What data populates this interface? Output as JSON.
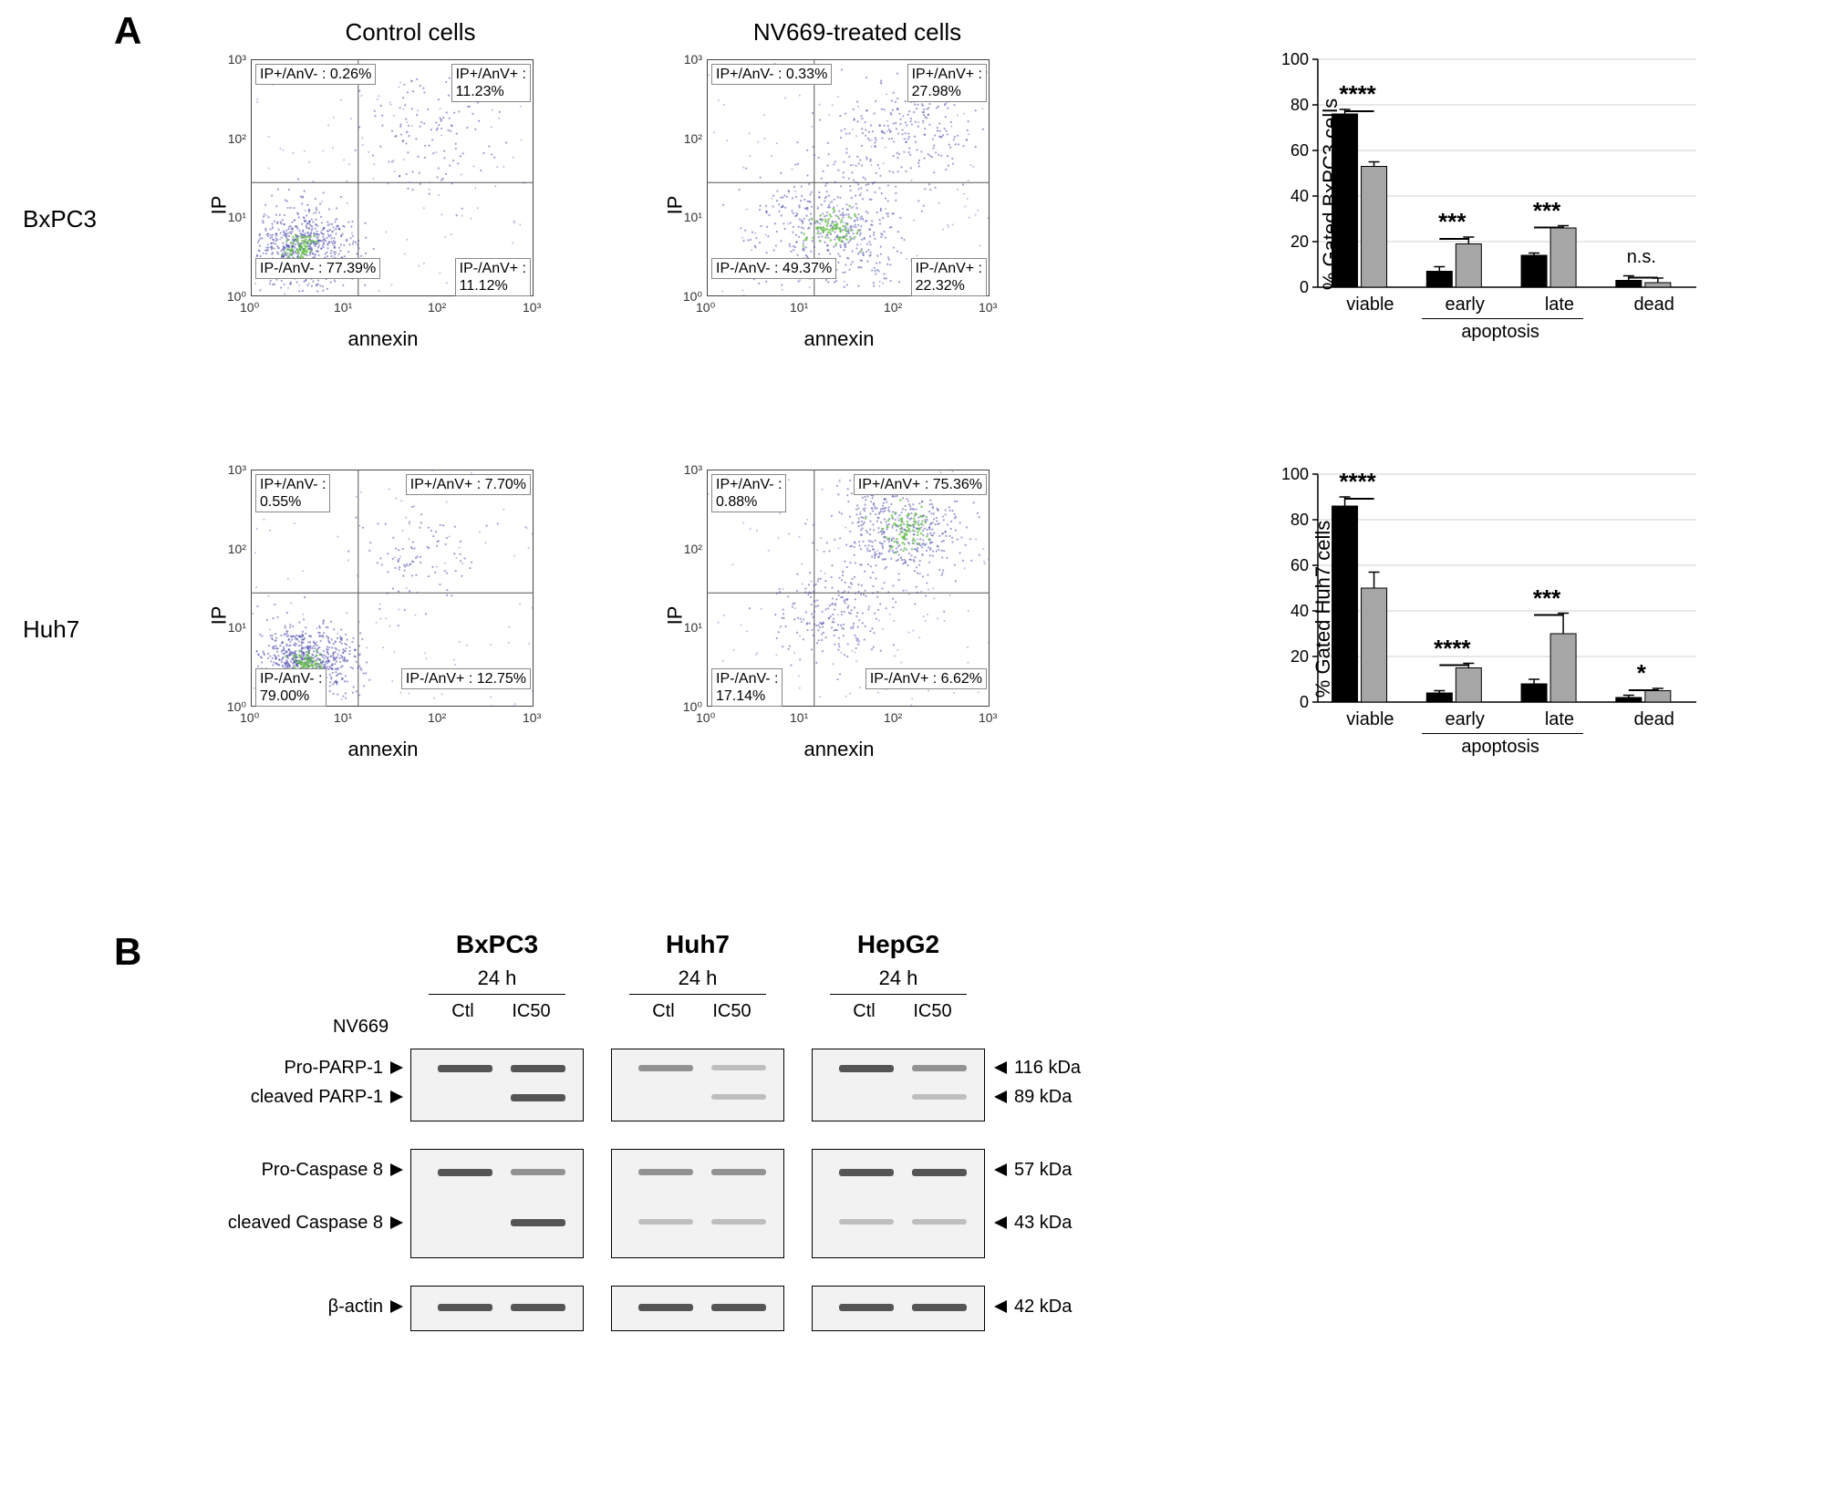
{
  "panelA": {
    "letter": "A",
    "col_headers": [
      "Control cells",
      "NV669-treated cells"
    ],
    "rows": [
      {
        "label": "BxPC3",
        "scatter": [
          {
            "y_label": "IP",
            "x_label": "annexin",
            "quadrants": {
              "ul": "IP+/AnV- : 0.26%",
              "ur": "IP+/AnV+ :\n11.23%",
              "ll": "IP-/AnV- : 77.39%",
              "lr": "IP-/AnV+ :\n11.12%"
            },
            "density_center": [
              0.18,
              0.8
            ],
            "density_spread": 0.09,
            "secondary_center": [
              0.62,
              0.32
            ],
            "secondary_spread": 0.12,
            "secondary_n": 120,
            "main_n": 700,
            "quad_lines": {
              "x": 0.38,
              "y": 0.52
            }
          },
          {
            "y_label": "IP",
            "x_label": "annexin",
            "quadrants": {
              "ul": "IP+/AnV- : 0.33%",
              "ur": "IP+/AnV+ :\n27.98%",
              "ll": "IP-/AnV- : 49.37%",
              "lr": "IP-/AnV+ :\n22.32%"
            },
            "density_center": [
              0.45,
              0.72
            ],
            "density_spread": 0.13,
            "secondary_center": [
              0.68,
              0.3
            ],
            "secondary_spread": 0.13,
            "secondary_n": 250,
            "main_n": 450,
            "quad_lines": {
              "x": 0.38,
              "y": 0.52
            }
          }
        ],
        "bar": {
          "y_label": "% Gated BxPC3 cells",
          "ymax": 100,
          "ytick_step": 20,
          "categories": [
            "viable",
            "early",
            "late",
            "dead"
          ],
          "apoptosis_span": [
            1,
            2
          ],
          "control": [
            76,
            7,
            14,
            3
          ],
          "control_err": [
            2,
            2,
            1,
            2
          ],
          "treated": [
            53,
            19,
            26,
            2
          ],
          "treated_err": [
            2,
            3,
            1,
            2
          ],
          "sig": [
            "****",
            "***",
            "***",
            "n.s."
          ],
          "colors": {
            "control": "#000000",
            "treated": "#a6a6a6",
            "grid": "#d0d0d0",
            "axis": "#000000"
          }
        }
      },
      {
        "label": "Huh7",
        "scatter": [
          {
            "y_label": "IP",
            "x_label": "annexin",
            "quadrants": {
              "ul": "IP+/AnV- :\n0.55%",
              "ur": "IP+/AnV+ : 7.70%",
              "ll": "IP-/AnV- :\n79.00%",
              "lr": "IP-/AnV+ : 12.75%"
            },
            "density_center": [
              0.2,
              0.82
            ],
            "density_spread": 0.08,
            "secondary_center": [
              0.6,
              0.35
            ],
            "secondary_spread": 0.1,
            "secondary_n": 90,
            "main_n": 750,
            "quad_lines": {
              "x": 0.38,
              "y": 0.52
            }
          },
          {
            "y_label": "IP",
            "x_label": "annexin",
            "quadrants": {
              "ul": "IP+/AnV- :\n0.88%",
              "ur": "IP+/AnV+ : 75.36%",
              "ll": "IP-/AnV- :\n17.14%",
              "lr": "IP-/AnV+ : 6.62%"
            },
            "density_center": [
              0.7,
              0.25
            ],
            "density_spread": 0.12,
            "secondary_center": [
              0.45,
              0.62
            ],
            "secondary_spread": 0.1,
            "secondary_n": 200,
            "main_n": 500,
            "quad_lines": {
              "x": 0.38,
              "y": 0.52
            }
          }
        ],
        "bar": {
          "y_label": "% Gated Huh7 cells",
          "ymax": 100,
          "ytick_step": 20,
          "categories": [
            "viable",
            "early",
            "late",
            "dead"
          ],
          "apoptosis_span": [
            1,
            2
          ],
          "control": [
            86,
            4,
            8,
            2
          ],
          "control_err": [
            4,
            1,
            2,
            1
          ],
          "treated": [
            50,
            15,
            30,
            5
          ],
          "treated_err": [
            7,
            2,
            9,
            1
          ],
          "sig": [
            "****",
            "****",
            "***",
            "*"
          ],
          "colors": {
            "control": "#000000",
            "treated": "#a6a6a6",
            "grid": "#d0d0d0",
            "axis": "#000000"
          }
        }
      }
    ]
  },
  "panelB": {
    "letter": "B",
    "nv669_label": "NV669",
    "time_label": "24 h",
    "conditions": [
      "Ctl",
      "IC50"
    ],
    "cell_lines": [
      "BxPC3",
      "Huh7",
      "HepG2"
    ],
    "row_labels_left": [
      "Pro-PARP-1",
      "cleaved PARP-1",
      "Pro-Caspase 8",
      "cleaved Caspase 8",
      "β-actin"
    ],
    "mw_right": [
      "116 kDa",
      "89 kDa",
      "57 kDa",
      "43 kDa",
      "42 kDa"
    ],
    "blots": {
      "frame_color": "#000000",
      "band_patterns": {
        "BxPC3": {
          "parp": [
            [
              "strong",
              "strong"
            ],
            [
              "none",
              "strong"
            ]
          ],
          "casp": [
            [
              "strong",
              "medium"
            ],
            [
              "none",
              "strong"
            ]
          ],
          "actin": [
            [
              "strong",
              "strong"
            ]
          ]
        },
        "Huh7": {
          "parp": [
            [
              "medium",
              "faint"
            ],
            [
              "none",
              "faint"
            ]
          ],
          "casp": [
            [
              "medium",
              "medium"
            ],
            [
              "faint",
              "faint"
            ]
          ],
          "actin": [
            [
              "strong",
              "strong"
            ]
          ]
        },
        "HepG2": {
          "parp": [
            [
              "strong",
              "medium"
            ],
            [
              "none",
              "faint"
            ]
          ],
          "casp": [
            [
              "strong",
              "strong"
            ],
            [
              "faint",
              "faint"
            ]
          ],
          "actin": [
            [
              "strong",
              "strong"
            ]
          ]
        }
      }
    }
  },
  "scatter_style": {
    "dot_color": "#3b3ba8",
    "dot_opacity": 0.5,
    "core_color": "#5fbf3f",
    "ticks": [
      "10⁰",
      "10¹",
      "10²",
      "10³"
    ],
    "quad_line_color": "#555"
  }
}
